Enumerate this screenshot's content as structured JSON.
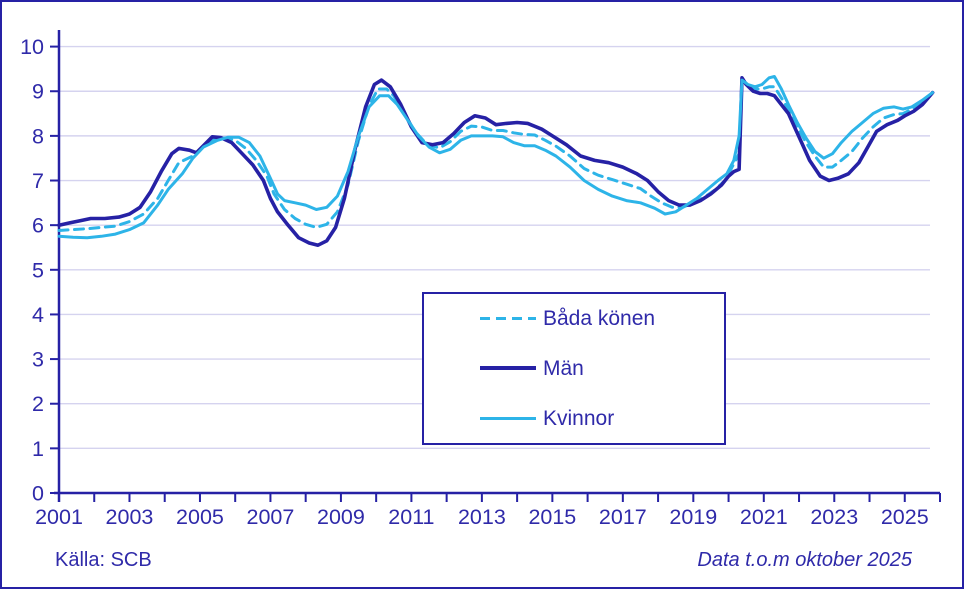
{
  "footer": {
    "source": "Källa: SCB",
    "note": "Data t.o.m oktober 2025"
  },
  "colors": {
    "navy": "#2621a5",
    "cyan": "#2db4e8",
    "grid": "#d5d3ef",
    "text": "#2f2aa9",
    "background": "#ffffff"
  },
  "legend": {
    "items": [
      {
        "label": "Båda könen",
        "color": "#2db4e8",
        "dashed": true
      },
      {
        "label": "Män",
        "color": "#2621a5",
        "dashed": false
      },
      {
        "label": "Kvinnor",
        "color": "#2db4e8",
        "dashed": false
      }
    ]
  },
  "chart_data": {
    "type": "line",
    "title": "",
    "xlabel": "",
    "ylabel": "",
    "xlim": [
      2001,
      2026
    ],
    "ylim": [
      0,
      10
    ],
    "grid": true,
    "legend_position": "center",
    "y_ticks": [
      0,
      1,
      2,
      3,
      4,
      5,
      6,
      7,
      8,
      9,
      10
    ],
    "x_minor_tick_step": 1,
    "x_tick_labels": [
      "2001",
      "2003",
      "2005",
      "2007",
      "2009",
      "2011",
      "2013",
      "2015",
      "2017",
      "2019",
      "2021",
      "2023",
      "2025"
    ],
    "x_tick_label_years": [
      2001,
      2003,
      2005,
      2007,
      2009,
      2011,
      2013,
      2015,
      2017,
      2019,
      2021,
      2023,
      2025
    ],
    "series": [
      {
        "name": "Båda könen",
        "color": "#2db4e8",
        "dashed": true,
        "points": [
          [
            2001,
            5.88
          ],
          [
            2001.4,
            5.9
          ],
          [
            2001.8,
            5.92
          ],
          [
            2002.2,
            5.95
          ],
          [
            2002.6,
            5.98
          ],
          [
            2003,
            6.08
          ],
          [
            2003.4,
            6.25
          ],
          [
            2003.8,
            6.6
          ],
          [
            2004.1,
            7.0
          ],
          [
            2004.4,
            7.4
          ],
          [
            2004.8,
            7.55
          ],
          [
            2005.1,
            7.77
          ],
          [
            2005.4,
            7.93
          ],
          [
            2005.7,
            7.95
          ],
          [
            2006,
            7.9
          ],
          [
            2006.3,
            7.72
          ],
          [
            2006.6,
            7.45
          ],
          [
            2006.9,
            7.1
          ],
          [
            2007.1,
            6.7
          ],
          [
            2007.4,
            6.35
          ],
          [
            2007.7,
            6.15
          ],
          [
            2008,
            6.02
          ],
          [
            2008.3,
            5.95
          ],
          [
            2008.6,
            6.02
          ],
          [
            2008.9,
            6.3
          ],
          [
            2009.2,
            6.9
          ],
          [
            2009.5,
            7.9
          ],
          [
            2009.8,
            8.68
          ],
          [
            2010.05,
            9.05
          ],
          [
            2010.3,
            9.05
          ],
          [
            2010.5,
            8.9
          ],
          [
            2010.8,
            8.5
          ],
          [
            2011.1,
            8.1
          ],
          [
            2011.45,
            7.8
          ],
          [
            2011.8,
            7.73
          ],
          [
            2012.1,
            7.87
          ],
          [
            2012.4,
            8.1
          ],
          [
            2012.7,
            8.22
          ],
          [
            2013,
            8.2
          ],
          [
            2013.3,
            8.12
          ],
          [
            2013.6,
            8.12
          ],
          [
            2013.9,
            8.07
          ],
          [
            2014.2,
            8.03
          ],
          [
            2014.5,
            8.02
          ],
          [
            2014.8,
            7.9
          ],
          [
            2015.1,
            7.77
          ],
          [
            2015.5,
            7.55
          ],
          [
            2015.9,
            7.27
          ],
          [
            2016.3,
            7.12
          ],
          [
            2016.7,
            7.02
          ],
          [
            2017.1,
            6.92
          ],
          [
            2017.5,
            6.82
          ],
          [
            2017.8,
            6.65
          ],
          [
            2018.1,
            6.5
          ],
          [
            2018.4,
            6.4
          ],
          [
            2018.7,
            6.4
          ],
          [
            2019,
            6.5
          ],
          [
            2019.3,
            6.62
          ],
          [
            2019.6,
            6.78
          ],
          [
            2019.9,
            7.0
          ],
          [
            2020.1,
            7.3
          ],
          [
            2020.3,
            7.6
          ],
          [
            2020.38,
            9.28
          ],
          [
            2020.55,
            9.13
          ],
          [
            2020.75,
            9.05
          ],
          [
            2020.95,
            9.05
          ],
          [
            2021.15,
            9.1
          ],
          [
            2021.3,
            9.1
          ],
          [
            2021.5,
            8.85
          ],
          [
            2021.7,
            8.6
          ],
          [
            2021.95,
            8.2
          ],
          [
            2022.2,
            7.85
          ],
          [
            2022.45,
            7.55
          ],
          [
            2022.7,
            7.3
          ],
          [
            2022.95,
            7.3
          ],
          [
            2023.2,
            7.45
          ],
          [
            2023.5,
            7.65
          ],
          [
            2023.8,
            7.95
          ],
          [
            2024.1,
            8.2
          ],
          [
            2024.4,
            8.4
          ],
          [
            2024.7,
            8.48
          ],
          [
            2024.95,
            8.5
          ],
          [
            2025.2,
            8.6
          ],
          [
            2025.5,
            8.75
          ],
          [
            2025.79,
            8.97
          ]
        ]
      },
      {
        "name": "Män",
        "color": "#2621a5",
        "dashed": false,
        "points": [
          [
            2001,
            6.0
          ],
          [
            2001.3,
            6.05
          ],
          [
            2001.6,
            6.1
          ],
          [
            2001.9,
            6.15
          ],
          [
            2002.3,
            6.15
          ],
          [
            2002.7,
            6.18
          ],
          [
            2003,
            6.25
          ],
          [
            2003.3,
            6.4
          ],
          [
            2003.6,
            6.75
          ],
          [
            2003.9,
            7.2
          ],
          [
            2004.2,
            7.6
          ],
          [
            2004.4,
            7.72
          ],
          [
            2004.7,
            7.68
          ],
          [
            2004.9,
            7.62
          ],
          [
            2005.1,
            7.78
          ],
          [
            2005.35,
            7.98
          ],
          [
            2005.6,
            7.96
          ],
          [
            2005.9,
            7.85
          ],
          [
            2006.2,
            7.6
          ],
          [
            2006.5,
            7.35
          ],
          [
            2006.8,
            7.0
          ],
          [
            2007,
            6.6
          ],
          [
            2007.2,
            6.3
          ],
          [
            2007.5,
            6.0
          ],
          [
            2007.8,
            5.72
          ],
          [
            2008.1,
            5.6
          ],
          [
            2008.35,
            5.55
          ],
          [
            2008.6,
            5.65
          ],
          [
            2008.85,
            5.95
          ],
          [
            2009.1,
            6.6
          ],
          [
            2009.4,
            7.7
          ],
          [
            2009.7,
            8.65
          ],
          [
            2009.95,
            9.15
          ],
          [
            2010.15,
            9.25
          ],
          [
            2010.4,
            9.1
          ],
          [
            2010.7,
            8.7
          ],
          [
            2011,
            8.2
          ],
          [
            2011.3,
            7.85
          ],
          [
            2011.6,
            7.8
          ],
          [
            2011.9,
            7.85
          ],
          [
            2012.2,
            8.05
          ],
          [
            2012.5,
            8.3
          ],
          [
            2012.8,
            8.45
          ],
          [
            2013.1,
            8.4
          ],
          [
            2013.4,
            8.25
          ],
          [
            2013.7,
            8.28
          ],
          [
            2014,
            8.3
          ],
          [
            2014.3,
            8.28
          ],
          [
            2014.7,
            8.15
          ],
          [
            2015,
            8.0
          ],
          [
            2015.4,
            7.8
          ],
          [
            2015.8,
            7.55
          ],
          [
            2016.2,
            7.45
          ],
          [
            2016.6,
            7.4
          ],
          [
            2017,
            7.3
          ],
          [
            2017.4,
            7.15
          ],
          [
            2017.7,
            7.0
          ],
          [
            2018,
            6.75
          ],
          [
            2018.3,
            6.55
          ],
          [
            2018.6,
            6.45
          ],
          [
            2018.9,
            6.45
          ],
          [
            2019.2,
            6.55
          ],
          [
            2019.5,
            6.7
          ],
          [
            2019.8,
            6.9
          ],
          [
            2020,
            7.1
          ],
          [
            2020.15,
            7.2
          ],
          [
            2020.3,
            7.25
          ],
          [
            2020.38,
            9.3
          ],
          [
            2020.5,
            9.15
          ],
          [
            2020.7,
            9.0
          ],
          [
            2020.9,
            8.95
          ],
          [
            2021.1,
            8.95
          ],
          [
            2021.3,
            8.9
          ],
          [
            2021.5,
            8.7
          ],
          [
            2021.7,
            8.5
          ],
          [
            2021.9,
            8.15
          ],
          [
            2022.1,
            7.8
          ],
          [
            2022.3,
            7.45
          ],
          [
            2022.6,
            7.1
          ],
          [
            2022.85,
            7.0
          ],
          [
            2023.1,
            7.05
          ],
          [
            2023.4,
            7.15
          ],
          [
            2023.7,
            7.4
          ],
          [
            2023.95,
            7.75
          ],
          [
            2024.2,
            8.1
          ],
          [
            2024.5,
            8.25
          ],
          [
            2024.8,
            8.35
          ],
          [
            2025,
            8.45
          ],
          [
            2025.25,
            8.55
          ],
          [
            2025.5,
            8.7
          ],
          [
            2025.79,
            8.97
          ]
        ]
      },
      {
        "name": "Kvinnor",
        "color": "#2db4e8",
        "dashed": false,
        "points": [
          [
            2001,
            5.75
          ],
          [
            2001.4,
            5.73
          ],
          [
            2001.8,
            5.72
          ],
          [
            2002.2,
            5.75
          ],
          [
            2002.6,
            5.8
          ],
          [
            2003,
            5.9
          ],
          [
            2003.4,
            6.05
          ],
          [
            2003.8,
            6.45
          ],
          [
            2004.1,
            6.8
          ],
          [
            2004.5,
            7.15
          ],
          [
            2004.8,
            7.5
          ],
          [
            2005.1,
            7.75
          ],
          [
            2005.5,
            7.9
          ],
          [
            2005.8,
            7.97
          ],
          [
            2006.1,
            7.97
          ],
          [
            2006.4,
            7.85
          ],
          [
            2006.7,
            7.55
          ],
          [
            2007,
            7.05
          ],
          [
            2007.2,
            6.7
          ],
          [
            2007.4,
            6.55
          ],
          [
            2007.7,
            6.5
          ],
          [
            2008,
            6.45
          ],
          [
            2008.3,
            6.35
          ],
          [
            2008.6,
            6.4
          ],
          [
            2008.9,
            6.65
          ],
          [
            2009.2,
            7.2
          ],
          [
            2009.5,
            8.0
          ],
          [
            2009.8,
            8.65
          ],
          [
            2010.1,
            8.9
          ],
          [
            2010.35,
            8.9
          ],
          [
            2010.6,
            8.7
          ],
          [
            2010.9,
            8.35
          ],
          [
            2011.2,
            8.0
          ],
          [
            2011.5,
            7.75
          ],
          [
            2011.8,
            7.62
          ],
          [
            2012.1,
            7.7
          ],
          [
            2012.4,
            7.9
          ],
          [
            2012.7,
            8.0
          ],
          [
            2013,
            8.0
          ],
          [
            2013.3,
            8.0
          ],
          [
            2013.6,
            7.98
          ],
          [
            2013.9,
            7.85
          ],
          [
            2014.2,
            7.78
          ],
          [
            2014.5,
            7.78
          ],
          [
            2014.8,
            7.68
          ],
          [
            2015.1,
            7.55
          ],
          [
            2015.5,
            7.3
          ],
          [
            2015.9,
            7.0
          ],
          [
            2016.3,
            6.8
          ],
          [
            2016.7,
            6.65
          ],
          [
            2017.1,
            6.55
          ],
          [
            2017.5,
            6.5
          ],
          [
            2017.9,
            6.38
          ],
          [
            2018.2,
            6.25
          ],
          [
            2018.5,
            6.3
          ],
          [
            2018.8,
            6.45
          ],
          [
            2019.1,
            6.6
          ],
          [
            2019.4,
            6.8
          ],
          [
            2019.7,
            7.0
          ],
          [
            2019.95,
            7.15
          ],
          [
            2020.15,
            7.45
          ],
          [
            2020.3,
            8.0
          ],
          [
            2020.38,
            9.25
          ],
          [
            2020.55,
            9.15
          ],
          [
            2020.75,
            9.1
          ],
          [
            2020.95,
            9.15
          ],
          [
            2021.15,
            9.3
          ],
          [
            2021.3,
            9.33
          ],
          [
            2021.5,
            9.05
          ],
          [
            2021.7,
            8.7
          ],
          [
            2021.95,
            8.3
          ],
          [
            2022.2,
            7.95
          ],
          [
            2022.45,
            7.65
          ],
          [
            2022.7,
            7.5
          ],
          [
            2022.95,
            7.6
          ],
          [
            2023.2,
            7.85
          ],
          [
            2023.5,
            8.1
          ],
          [
            2023.8,
            8.3
          ],
          [
            2024.1,
            8.5
          ],
          [
            2024.4,
            8.62
          ],
          [
            2024.7,
            8.65
          ],
          [
            2024.95,
            8.6
          ],
          [
            2025.2,
            8.65
          ],
          [
            2025.5,
            8.8
          ],
          [
            2025.79,
            8.97
          ]
        ]
      }
    ]
  }
}
